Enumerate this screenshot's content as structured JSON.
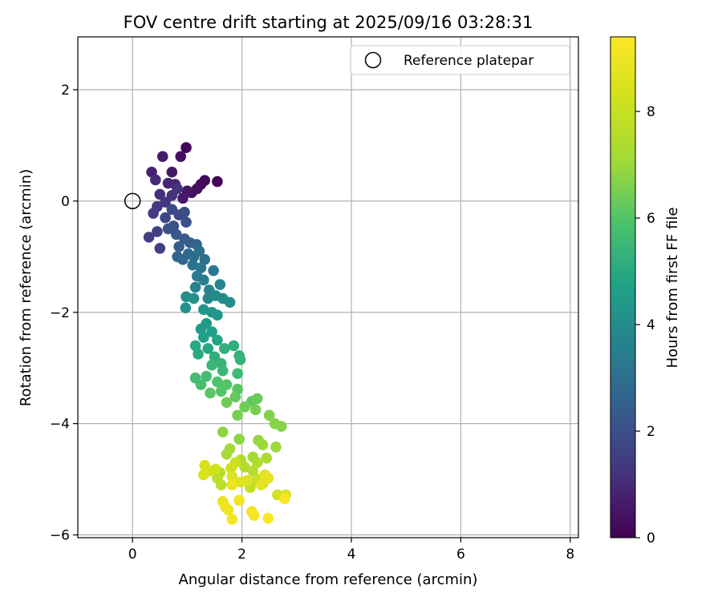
{
  "chart_data": {
    "type": "scatter",
    "title": "FOV centre drift starting at 2025/09/16 03:28:31",
    "xlabel": "Angular distance from reference (arcmin)",
    "ylabel": "Rotation from reference (arcmin)",
    "xlim": [
      -1,
      8.15
    ],
    "ylim": [
      -6.05,
      2.95
    ],
    "xticks": [
      0,
      2,
      4,
      6,
      8
    ],
    "yticks": [
      2,
      0,
      -2,
      -4,
      -6
    ],
    "xtick_labels": [
      "0",
      "2",
      "4",
      "6",
      "8"
    ],
    "ytick_labels": [
      "2",
      "0",
      "−2",
      "−4",
      "−6"
    ],
    "grid": true,
    "legend": {
      "position": "top-right",
      "entries": [
        {
          "label": "Reference platepar",
          "marker": "open-circle"
        }
      ]
    },
    "reference_point": {
      "x": 0,
      "y": 0
    },
    "colorbar": {
      "label": "Hours from first FF file",
      "colormap": "viridis",
      "range": [
        0,
        9.4
      ],
      "ticks": [
        0,
        2,
        4,
        6,
        8
      ],
      "tick_labels": [
        "0",
        "2",
        "4",
        "6",
        "8"
      ]
    },
    "series": [
      {
        "name": "FOV centre drift",
        "points": [
          {
            "x": 0.98,
            "y": 0.96,
            "t": 0.1
          },
          {
            "x": 1.55,
            "y": 0.35,
            "t": 0.1
          },
          {
            "x": 1.32,
            "y": 0.37,
            "t": 0.2
          },
          {
            "x": 1.25,
            "y": 0.3,
            "t": 0.2
          },
          {
            "x": 1.18,
            "y": 0.22,
            "t": 0.3
          },
          {
            "x": 1.08,
            "y": 0.15,
            "t": 0.3
          },
          {
            "x": 0.88,
            "y": 0.8,
            "t": 0.4
          },
          {
            "x": 1.0,
            "y": 0.18,
            "t": 0.5
          },
          {
            "x": 0.92,
            "y": 0.05,
            "t": 0.6
          },
          {
            "x": 0.72,
            "y": 0.52,
            "t": 0.6
          },
          {
            "x": 0.55,
            "y": 0.8,
            "t": 0.7
          },
          {
            "x": 0.35,
            "y": 0.52,
            "t": 0.8
          },
          {
            "x": 0.78,
            "y": 0.3,
            "t": 0.9
          },
          {
            "x": 0.65,
            "y": 0.32,
            "t": 0.9
          },
          {
            "x": 0.42,
            "y": 0.38,
            "t": 1.0
          },
          {
            "x": 0.5,
            "y": 0.12,
            "t": 1.1
          },
          {
            "x": 0.72,
            "y": 0.1,
            "t": 1.2
          },
          {
            "x": 0.82,
            "y": 0.22,
            "t": 1.2
          },
          {
            "x": 0.6,
            "y": -0.02,
            "t": 1.3
          },
          {
            "x": 0.45,
            "y": -0.1,
            "t": 1.4
          },
          {
            "x": 0.38,
            "y": -0.22,
            "t": 1.4
          },
          {
            "x": 0.3,
            "y": -0.65,
            "t": 1.5
          },
          {
            "x": 0.5,
            "y": -0.85,
            "t": 1.5
          },
          {
            "x": 0.45,
            "y": -0.55,
            "t": 1.6
          },
          {
            "x": 0.6,
            "y": -0.3,
            "t": 1.7
          },
          {
            "x": 0.72,
            "y": -0.15,
            "t": 1.8
          },
          {
            "x": 0.85,
            "y": -0.25,
            "t": 1.8
          },
          {
            "x": 0.95,
            "y": -0.2,
            "t": 1.9
          },
          {
            "x": 0.98,
            "y": -0.38,
            "t": 2.0
          },
          {
            "x": 0.75,
            "y": -0.45,
            "t": 2.0
          },
          {
            "x": 0.65,
            "y": -0.5,
            "t": 2.1
          },
          {
            "x": 0.8,
            "y": -0.6,
            "t": 2.2
          },
          {
            "x": 0.95,
            "y": -0.68,
            "t": 2.3
          },
          {
            "x": 1.05,
            "y": -0.75,
            "t": 2.4
          },
          {
            "x": 0.85,
            "y": -0.82,
            "t": 2.5
          },
          {
            "x": 1.17,
            "y": -0.78,
            "t": 2.6
          },
          {
            "x": 0.82,
            "y": -1.0,
            "t": 2.6
          },
          {
            "x": 0.92,
            "y": -1.05,
            "t": 2.7
          },
          {
            "x": 1.02,
            "y": -0.95,
            "t": 2.8
          },
          {
            "x": 1.12,
            "y": -1.0,
            "t": 2.9
          },
          {
            "x": 1.22,
            "y": -0.9,
            "t": 3.0
          },
          {
            "x": 1.32,
            "y": -1.05,
            "t": 3.0
          },
          {
            "x": 1.1,
            "y": -1.15,
            "t": 3.1
          },
          {
            "x": 1.25,
            "y": -1.2,
            "t": 3.2
          },
          {
            "x": 1.48,
            "y": -1.25,
            "t": 3.3
          },
          {
            "x": 1.18,
            "y": -1.35,
            "t": 3.4
          },
          {
            "x": 1.3,
            "y": -1.42,
            "t": 3.5
          },
          {
            "x": 1.15,
            "y": -1.55,
            "t": 3.6
          },
          {
            "x": 1.4,
            "y": -1.6,
            "t": 3.7
          },
          {
            "x": 1.6,
            "y": -1.5,
            "t": 3.7
          },
          {
            "x": 1.38,
            "y": -1.75,
            "t": 3.8
          },
          {
            "x": 1.52,
            "y": -1.7,
            "t": 3.9
          },
          {
            "x": 1.65,
            "y": -1.75,
            "t": 4.0
          },
          {
            "x": 1.78,
            "y": -1.82,
            "t": 4.0
          },
          {
            "x": 1.12,
            "y": -1.75,
            "t": 4.1
          },
          {
            "x": 0.98,
            "y": -1.72,
            "t": 4.1
          },
          {
            "x": 0.97,
            "y": -1.92,
            "t": 4.2
          },
          {
            "x": 1.3,
            "y": -1.95,
            "t": 4.3
          },
          {
            "x": 1.45,
            "y": -2.0,
            "t": 4.3
          },
          {
            "x": 1.55,
            "y": -2.05,
            "t": 4.4
          },
          {
            "x": 1.35,
            "y": -2.2,
            "t": 4.5
          },
          {
            "x": 1.25,
            "y": -2.3,
            "t": 4.5
          },
          {
            "x": 1.45,
            "y": -2.35,
            "t": 4.6
          },
          {
            "x": 1.3,
            "y": -2.45,
            "t": 4.7
          },
          {
            "x": 1.55,
            "y": -2.5,
            "t": 4.8
          },
          {
            "x": 1.38,
            "y": -2.65,
            "t": 4.9
          },
          {
            "x": 1.15,
            "y": -2.6,
            "t": 5.0
          },
          {
            "x": 1.2,
            "y": -2.75,
            "t": 5.0
          },
          {
            "x": 1.5,
            "y": -2.8,
            "t": 5.1
          },
          {
            "x": 1.68,
            "y": -2.65,
            "t": 5.2
          },
          {
            "x": 1.85,
            "y": -2.6,
            "t": 5.2
          },
          {
            "x": 1.95,
            "y": -2.78,
            "t": 5.3
          },
          {
            "x": 1.97,
            "y": -2.85,
            "t": 5.3
          },
          {
            "x": 1.62,
            "y": -2.92,
            "t": 5.4
          },
          {
            "x": 1.45,
            "y": -2.95,
            "t": 5.5
          },
          {
            "x": 1.65,
            "y": -3.05,
            "t": 5.5
          },
          {
            "x": 1.92,
            "y": -3.1,
            "t": 5.6
          },
          {
            "x": 1.35,
            "y": -3.15,
            "t": 5.7
          },
          {
            "x": 1.15,
            "y": -3.18,
            "t": 5.7
          },
          {
            "x": 1.25,
            "y": -3.3,
            "t": 5.8
          },
          {
            "x": 1.55,
            "y": -3.25,
            "t": 5.9
          },
          {
            "x": 1.72,
            "y": -3.3,
            "t": 6.0
          },
          {
            "x": 1.62,
            "y": -3.42,
            "t": 6.0
          },
          {
            "x": 1.42,
            "y": -3.45,
            "t": 6.1
          },
          {
            "x": 1.92,
            "y": -3.38,
            "t": 6.1
          },
          {
            "x": 1.88,
            "y": -3.52,
            "t": 6.2
          },
          {
            "x": 2.18,
            "y": -3.6,
            "t": 6.2
          },
          {
            "x": 2.28,
            "y": -3.55,
            "t": 6.3
          },
          {
            "x": 1.72,
            "y": -3.62,
            "t": 6.4
          },
          {
            "x": 2.05,
            "y": -3.7,
            "t": 6.4
          },
          {
            "x": 2.25,
            "y": -3.75,
            "t": 6.5
          },
          {
            "x": 1.92,
            "y": -3.85,
            "t": 6.5
          },
          {
            "x": 2.5,
            "y": -3.85,
            "t": 6.6
          },
          {
            "x": 2.6,
            "y": -4.0,
            "t": 6.7
          },
          {
            "x": 2.72,
            "y": -4.05,
            "t": 6.7
          },
          {
            "x": 1.65,
            "y": -4.15,
            "t": 6.8
          },
          {
            "x": 1.95,
            "y": -4.28,
            "t": 6.8
          },
          {
            "x": 2.3,
            "y": -4.3,
            "t": 6.9
          },
          {
            "x": 2.38,
            "y": -4.38,
            "t": 7.0
          },
          {
            "x": 2.62,
            "y": -4.42,
            "t": 7.0
          },
          {
            "x": 1.78,
            "y": -4.45,
            "t": 7.1
          },
          {
            "x": 1.72,
            "y": -4.55,
            "t": 7.2
          },
          {
            "x": 2.2,
            "y": -4.6,
            "t": 7.2
          },
          {
            "x": 2.45,
            "y": -4.62,
            "t": 7.3
          },
          {
            "x": 2.28,
            "y": -4.7,
            "t": 7.4
          },
          {
            "x": 2.05,
            "y": -4.78,
            "t": 7.5
          },
          {
            "x": 1.98,
            "y": -4.65,
            "t": 7.5
          },
          {
            "x": 2.2,
            "y": -4.85,
            "t": 7.6
          },
          {
            "x": 1.6,
            "y": -4.88,
            "t": 7.6
          },
          {
            "x": 1.55,
            "y": -4.98,
            "t": 7.7
          },
          {
            "x": 1.62,
            "y": -5.1,
            "t": 7.7
          },
          {
            "x": 2.2,
            "y": -5.05,
            "t": 7.8
          },
          {
            "x": 2.38,
            "y": -5.08,
            "t": 7.9
          },
          {
            "x": 2.15,
            "y": -5.15,
            "t": 7.9
          },
          {
            "x": 2.32,
            "y": -5.0,
            "t": 8.0
          },
          {
            "x": 1.88,
            "y": -4.7,
            "t": 8.1
          },
          {
            "x": 1.8,
            "y": -4.8,
            "t": 8.2
          },
          {
            "x": 1.52,
            "y": -4.82,
            "t": 8.2
          },
          {
            "x": 1.4,
            "y": -4.85,
            "t": 8.3
          },
          {
            "x": 2.65,
            "y": -5.28,
            "t": 8.3
          },
          {
            "x": 2.8,
            "y": -5.28,
            "t": 8.4
          },
          {
            "x": 1.32,
            "y": -4.75,
            "t": 8.4
          },
          {
            "x": 1.3,
            "y": -4.92,
            "t": 8.5
          },
          {
            "x": 1.82,
            "y": -4.95,
            "t": 8.5
          },
          {
            "x": 1.85,
            "y": -5.05,
            "t": 8.6
          },
          {
            "x": 1.98,
            "y": -5.05,
            "t": 8.6
          },
          {
            "x": 2.1,
            "y": -5.02,
            "t": 8.7
          },
          {
            "x": 2.42,
            "y": -4.92,
            "t": 8.7
          },
          {
            "x": 2.48,
            "y": -4.98,
            "t": 8.8
          },
          {
            "x": 2.35,
            "y": -5.1,
            "t": 8.8
          },
          {
            "x": 1.82,
            "y": -5.1,
            "t": 8.9
          },
          {
            "x": 1.65,
            "y": -5.4,
            "t": 8.9
          },
          {
            "x": 1.7,
            "y": -5.5,
            "t": 9.0
          },
          {
            "x": 1.75,
            "y": -5.55,
            "t": 9.0
          },
          {
            "x": 1.82,
            "y": -5.72,
            "t": 9.1
          },
          {
            "x": 1.95,
            "y": -5.38,
            "t": 9.1
          },
          {
            "x": 2.18,
            "y": -5.58,
            "t": 9.2
          },
          {
            "x": 2.22,
            "y": -5.65,
            "t": 9.2
          },
          {
            "x": 2.48,
            "y": -5.7,
            "t": 9.3
          },
          {
            "x": 2.78,
            "y": -5.35,
            "t": 9.3
          }
        ]
      }
    ]
  }
}
